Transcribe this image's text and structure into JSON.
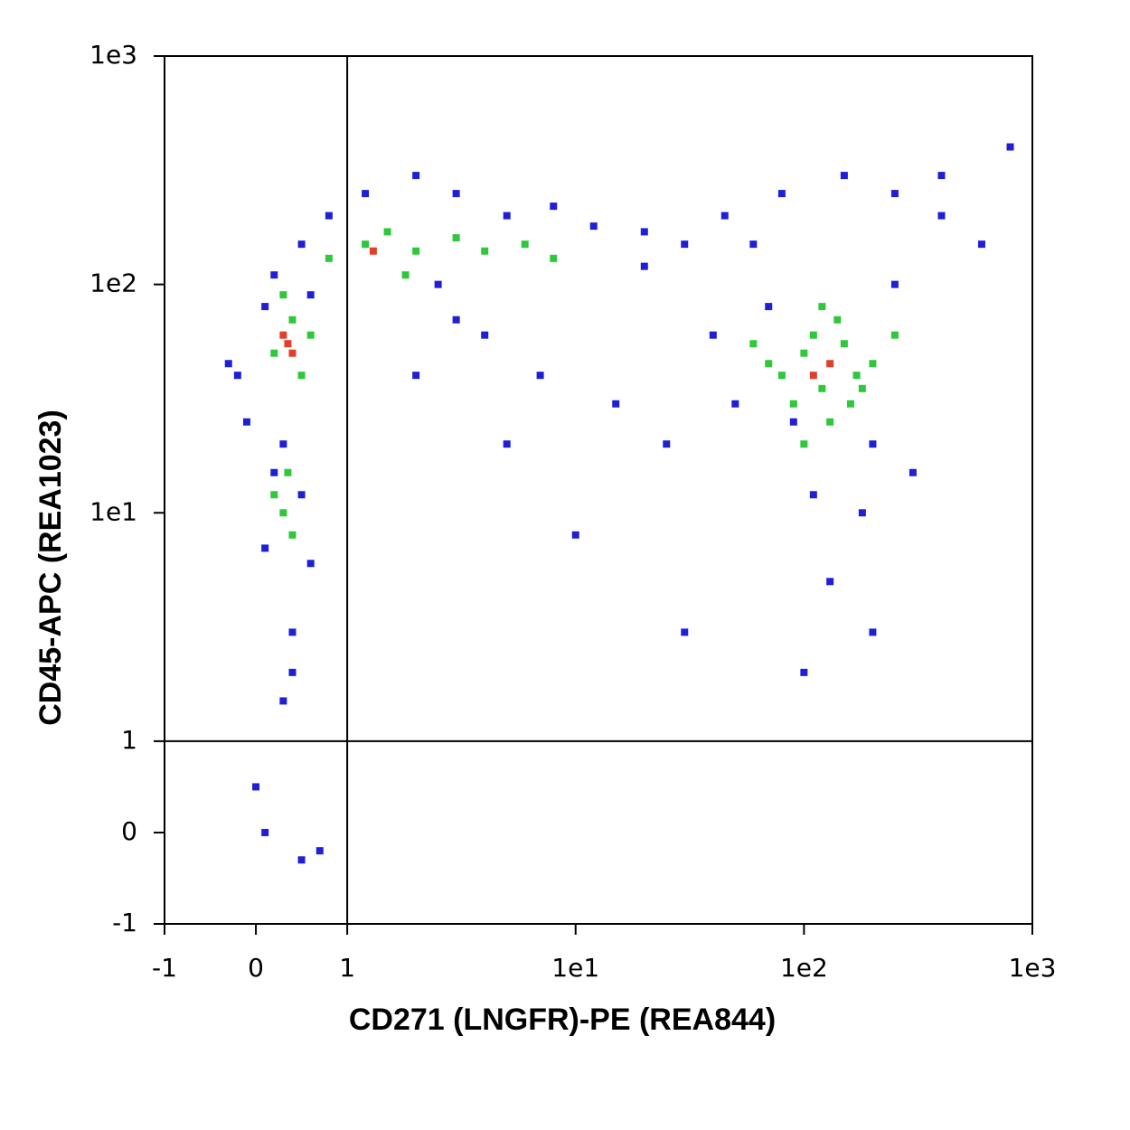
{
  "chart_data": {
    "type": "scatter",
    "x_label": "CD271 (LNGFR)-PE (REA844)",
    "y_label": "CD45-APC (REA1023)",
    "xscale": "biexponential",
    "yscale": "biexponential",
    "xlim": [
      -1,
      1000
    ],
    "ylim": [
      -1,
      1000
    ],
    "xticks": [
      -1,
      0,
      1,
      {
        "value": 10,
        "label": "1e1"
      },
      {
        "value": 100,
        "label": "1e2"
      },
      {
        "value": 1000,
        "label": "1e3"
      }
    ],
    "yticks": [
      -1,
      0,
      1,
      {
        "value": 10,
        "label": "1e1"
      },
      {
        "value": 100,
        "label": "1e2"
      },
      {
        "value": 1000,
        "label": "1e3"
      }
    ],
    "quadrant_x": 1,
    "quadrant_y": 1,
    "series": [
      {
        "color": "#1f1fd6",
        "x": [
          0.1,
          0.5,
          -0.2,
          0.8,
          0.2,
          0.6,
          -0.1,
          0.4,
          0.0,
          0.7,
          1.2,
          2,
          3,
          5,
          8,
          12,
          20,
          30,
          45,
          2.5,
          4,
          7,
          15,
          25,
          60,
          80,
          150,
          250,
          400,
          600,
          200,
          300,
          90,
          70,
          110,
          180,
          50,
          40,
          130,
          250,
          0.3,
          0.5,
          0.1,
          -0.3,
          0.6,
          0.2,
          0.4,
          0.3,
          0.1,
          0.5,
          2,
          5,
          10,
          30,
          100,
          200,
          3,
          20,
          400,
          800
        ],
        "values": [
          80,
          150,
          40,
          200,
          15,
          6,
          25,
          3,
          0.5,
          -0.2,
          250,
          300,
          250,
          200,
          220,
          180,
          170,
          150,
          200,
          100,
          60,
          40,
          30,
          20,
          150,
          250,
          300,
          250,
          200,
          150,
          20,
          15,
          25,
          80,
          12,
          10,
          30,
          60,
          5,
          100,
          20,
          12,
          7,
          45,
          90,
          110,
          2,
          1.5,
          0,
          -0.3,
          40,
          20,
          8,
          3,
          2,
          3,
          70,
          120,
          300,
          400
        ]
      },
      {
        "color": "#2fc83a",
        "x": [
          0.2,
          0.4,
          0.5,
          0.3,
          0.6,
          0.8,
          1.2,
          1.5,
          2,
          3,
          4,
          6,
          8,
          0.3,
          0.2,
          0.4,
          0.35,
          80,
          100,
          120,
          150,
          200,
          90,
          110,
          130,
          170,
          250,
          70,
          140,
          100,
          180,
          60,
          120,
          160,
          1.8
        ],
        "values": [
          50,
          70,
          40,
          90,
          60,
          130,
          150,
          170,
          140,
          160,
          140,
          150,
          130,
          10,
          12,
          8,
          15,
          40,
          50,
          35,
          55,
          45,
          30,
          60,
          25,
          40,
          60,
          45,
          70,
          20,
          35,
          55,
          80,
          30,
          110
        ]
      },
      {
        "color": "#e0402a",
        "x": [
          0.35,
          0.3,
          0.4,
          1.3,
          130,
          110
        ],
        "values": [
          55,
          60,
          50,
          140,
          45,
          40
        ]
      }
    ]
  }
}
